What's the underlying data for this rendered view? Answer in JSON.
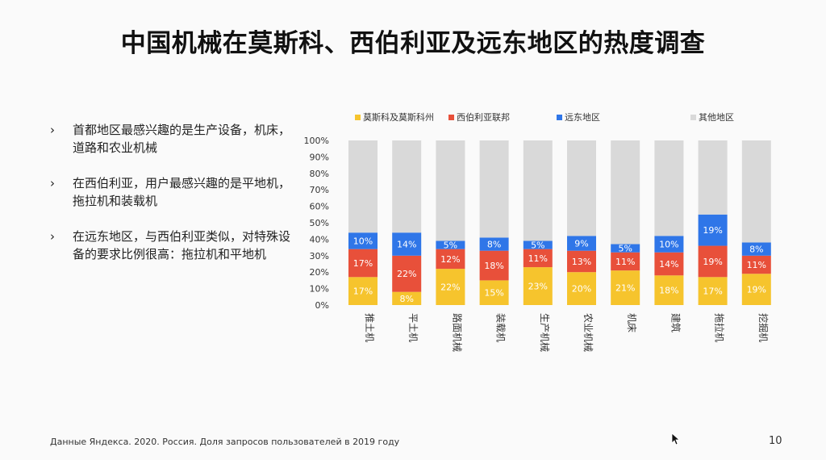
{
  "slide": {
    "title": "中国机械在莫斯科、西伯利亚及远东地区的热度调查",
    "bullet_marker": "›",
    "bullets": [
      "首都地区最感兴趣的是生产设备，机床，道路和农业机械",
      "在西伯利亚，用户最感兴趣的是平地机，拖拉机和装载机",
      "在远东地区，与西伯利亚类似，对特殊设备的要求比例很高：拖拉机和平地机"
    ],
    "footer": "Данные Яндекса. 2020. Россия. Доля запросов пользователей в 2019 году",
    "page_number": "10"
  },
  "chart_data": {
    "type": "bar",
    "stacked": true,
    "categories": [
      "推土机",
      "平土机",
      "路面机械",
      "装载机",
      "生产机械",
      "农业机械",
      "机床",
      "建筑",
      "拖拉机",
      "挖掘机"
    ],
    "series": [
      {
        "name": "莫斯科及莫斯科州",
        "color": "#f6c42d",
        "values": [
          17,
          8,
          22,
          15,
          23,
          20,
          21,
          18,
          17,
          19
        ]
      },
      {
        "name": "西伯利亚联邦",
        "color": "#e8503a",
        "values": [
          17,
          22,
          12,
          18,
          11,
          13,
          11,
          14,
          19,
          11
        ]
      },
      {
        "name": "远东地区",
        "color": "#2f76e8",
        "values": [
          10,
          14,
          5,
          8,
          5,
          9,
          5,
          10,
          19,
          8
        ]
      },
      {
        "name": "其他地区",
        "color": "#d9d9d9",
        "values": [
          56,
          56,
          61,
          59,
          61,
          58,
          63,
          58,
          45,
          62
        ]
      }
    ],
    "data_labels_series": [
      "莫斯科及莫斯科州",
      "西伯利亚联邦",
      "远东地区"
    ],
    "value_suffix": "%",
    "ylim": [
      0,
      100
    ],
    "yticks": [
      "0%",
      "10%",
      "20%",
      "30%",
      "40%",
      "50%",
      "60%",
      "70%",
      "80%",
      "90%",
      "100%"
    ],
    "legend_position": "top",
    "grid": false
  }
}
